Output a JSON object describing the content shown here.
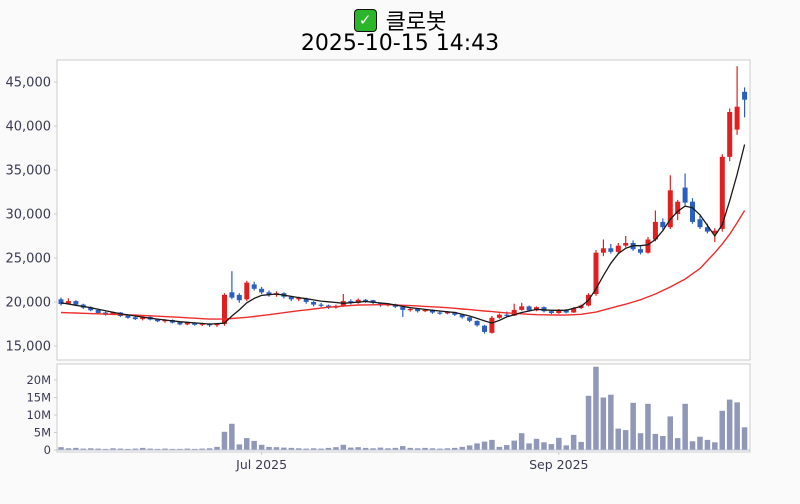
{
  "header": {
    "check_glyph": "✓",
    "title": "클로봇",
    "datetime": "2025-10-15 14:43"
  },
  "chart_data": {
    "type": "candlestick",
    "title": "클로봇",
    "subtitle": "2025-10-15 14:43",
    "legend_position": "none",
    "grid": false,
    "price_axis": {
      "range": [
        13400,
        47500
      ],
      "ticks": [
        {
          "label": "15,000",
          "value": 15000
        },
        {
          "label": "20,000",
          "value": 20000
        },
        {
          "label": "25,000",
          "value": 25000
        },
        {
          "label": "30,000",
          "value": 30000
        },
        {
          "label": "35,000",
          "value": 35000
        },
        {
          "label": "40,000",
          "value": 40000
        },
        {
          "label": "45,000",
          "value": 45000
        }
      ]
    },
    "volume_axis": {
      "unit": "millions",
      "range": [
        0,
        25.5
      ],
      "ticks": [
        {
          "label": "0",
          "value": 0
        },
        {
          "label": "5M",
          "value": 5
        },
        {
          "label": "10M",
          "value": 10
        },
        {
          "label": "15M",
          "value": 15
        },
        {
          "label": "20M",
          "value": 20
        }
      ]
    },
    "x_axis": {
      "ticks": [
        {
          "label": "Jul 2025",
          "index": 27
        },
        {
          "label": "Sep 2025",
          "index": 67
        }
      ]
    },
    "colors": {
      "up": "#e02020",
      "down": "#2a5fbe",
      "ma_fast": "#1a1a1a",
      "ma_slow": "#ee2d2d",
      "volume": "#9097b7",
      "axis_label": "#3b3b52",
      "spine": "#cccccc",
      "plot_bg": "#ffffff",
      "fig_bg": "#fafafa"
    },
    "series": {
      "candles_format": [
        "open",
        "high",
        "low",
        "close",
        "volume_millions"
      ],
      "candles": [
        [
          20300,
          20500,
          19600,
          19750,
          0.8
        ],
        [
          19800,
          20400,
          19700,
          20100,
          0.5
        ],
        [
          20100,
          20200,
          19600,
          19700,
          0.6
        ],
        [
          19700,
          19800,
          19200,
          19350,
          0.4
        ],
        [
          19400,
          19500,
          18950,
          19050,
          0.5
        ],
        [
          19100,
          19150,
          18650,
          18750,
          0.4
        ],
        [
          18800,
          18900,
          18450,
          18550,
          0.3
        ],
        [
          18550,
          18900,
          18500,
          18800,
          0.5
        ],
        [
          18800,
          18850,
          18300,
          18400,
          0.4
        ],
        [
          18450,
          18500,
          18100,
          18200,
          0.3
        ],
        [
          18250,
          18350,
          17950,
          18050,
          0.4
        ],
        [
          18050,
          18400,
          17900,
          18300,
          0.6
        ],
        [
          18300,
          18350,
          17900,
          18000,
          0.4
        ],
        [
          18000,
          18100,
          17700,
          17800,
          0.3
        ],
        [
          17800,
          18050,
          17650,
          17950,
          0.4
        ],
        [
          17950,
          18000,
          17550,
          17650,
          0.3
        ],
        [
          17700,
          17750,
          17350,
          17450,
          0.3
        ],
        [
          17450,
          17750,
          17350,
          17650,
          0.4
        ],
        [
          17650,
          17700,
          17300,
          17400,
          0.3
        ],
        [
          17400,
          17650,
          17250,
          17550,
          0.4
        ],
        [
          17550,
          17600,
          17150,
          17350,
          0.5
        ],
        [
          17350,
          17600,
          17150,
          17500,
          0.9
        ],
        [
          17500,
          21000,
          17300,
          20800,
          5.2
        ],
        [
          21100,
          23500,
          20300,
          20500,
          7.5
        ],
        [
          20800,
          21000,
          19900,
          20200,
          1.6
        ],
        [
          20300,
          22400,
          20100,
          22200,
          3.4
        ],
        [
          22000,
          22300,
          21300,
          21500,
          2.6
        ],
        [
          21500,
          21700,
          20900,
          21100,
          1.5
        ],
        [
          21100,
          21300,
          20600,
          20800,
          0.9
        ],
        [
          20800,
          21200,
          20600,
          21000,
          0.8
        ],
        [
          21000,
          21100,
          20400,
          20600,
          0.7
        ],
        [
          20600,
          20700,
          20100,
          20300,
          0.6
        ],
        [
          20300,
          20600,
          20100,
          20450,
          0.5
        ],
        [
          20400,
          20500,
          19800,
          20000,
          0.4
        ],
        [
          20000,
          20100,
          19500,
          19700,
          0.5
        ],
        [
          19700,
          19900,
          19400,
          19600,
          0.4
        ],
        [
          19600,
          19700,
          19200,
          19350,
          0.6
        ],
        [
          19350,
          19700,
          19250,
          19550,
          0.8
        ],
        [
          19550,
          20900,
          19450,
          20100,
          1.5
        ],
        [
          20100,
          20300,
          19700,
          19900,
          0.7
        ],
        [
          19900,
          20400,
          19800,
          20250,
          0.8
        ],
        [
          20250,
          20350,
          19900,
          20200,
          0.6
        ],
        [
          20200,
          20250,
          19750,
          19900,
          0.5
        ],
        [
          19900,
          19950,
          19450,
          19600,
          0.7
        ],
        [
          19600,
          19850,
          19500,
          19750,
          0.5
        ],
        [
          19750,
          19800,
          19300,
          19450,
          0.6
        ],
        [
          19450,
          19500,
          18300,
          19100,
          1.1
        ],
        [
          19100,
          19300,
          18900,
          19200,
          0.6
        ],
        [
          19200,
          19250,
          18800,
          18950,
          0.5
        ],
        [
          18950,
          19200,
          18850,
          19100,
          0.6
        ],
        [
          19100,
          19150,
          18650,
          18800,
          0.5
        ],
        [
          18800,
          18950,
          18550,
          18700,
          0.4
        ],
        [
          18700,
          18950,
          18600,
          18850,
          0.5
        ],
        [
          18850,
          18900,
          18400,
          18550,
          0.6
        ],
        [
          18550,
          18600,
          18100,
          18250,
          0.9
        ],
        [
          18250,
          18300,
          17700,
          17850,
          1.3
        ],
        [
          17850,
          17900,
          17200,
          17350,
          1.9
        ],
        [
          17300,
          17400,
          16400,
          16600,
          2.4
        ],
        [
          16500,
          18400,
          16400,
          18200,
          2.9
        ],
        [
          18200,
          18700,
          18100,
          18550,
          0.9
        ],
        [
          18550,
          18900,
          18300,
          18450,
          1.4
        ],
        [
          18450,
          19800,
          18400,
          19100,
          2.7
        ],
        [
          19100,
          19900,
          19000,
          19500,
          4.8
        ],
        [
          19500,
          19600,
          18900,
          19050,
          1.9
        ],
        [
          19050,
          19500,
          18950,
          19400,
          3.2
        ],
        [
          19400,
          19500,
          18800,
          18950,
          2.2
        ],
        [
          18950,
          19100,
          18600,
          18750,
          1.7
        ],
        [
          18750,
          19200,
          18650,
          19100,
          3.5
        ],
        [
          19100,
          19200,
          18700,
          18800,
          1.3
        ],
        [
          18800,
          19400,
          18750,
          19300,
          4.3
        ],
        [
          19300,
          19700,
          19200,
          19600,
          2.3
        ],
        [
          19600,
          21000,
          19500,
          20800,
          15.5
        ],
        [
          20900,
          25900,
          20700,
          25600,
          23.8
        ],
        [
          25600,
          27100,
          25200,
          26100,
          15.0
        ],
        [
          26100,
          26600,
          25500,
          25700,
          15.8
        ],
        [
          25700,
          26700,
          25500,
          26400,
          6.1
        ],
        [
          26400,
          27500,
          26200,
          26700,
          5.7
        ],
        [
          26700,
          27000,
          25800,
          26000,
          13.5
        ],
        [
          26000,
          26300,
          25400,
          25600,
          4.8
        ],
        [
          25600,
          27400,
          25500,
          27100,
          13.2
        ],
        [
          27100,
          30400,
          26900,
          29100,
          4.6
        ],
        [
          29100,
          29500,
          28200,
          28500,
          4.0
        ],
        [
          28500,
          34400,
          28300,
          32700,
          9.6
        ],
        [
          30000,
          31600,
          29300,
          31400,
          3.4
        ],
        [
          33000,
          34600,
          31000,
          31300,
          13.2
        ],
        [
          31400,
          31800,
          28900,
          29100,
          2.5
        ],
        [
          29400,
          29800,
          28300,
          28500,
          3.8
        ],
        [
          28500,
          28900,
          27800,
          28000,
          2.9
        ],
        [
          27800,
          28400,
          26800,
          28100,
          2.2
        ],
        [
          28300,
          36800,
          28000,
          36500,
          11.2
        ],
        [
          36500,
          42000,
          36000,
          41600,
          14.4
        ],
        [
          39600,
          46800,
          39000,
          42200,
          13.6
        ],
        [
          43900,
          44400,
          41000,
          43000,
          6.5
        ]
      ],
      "ma_fast_anchors": [
        [
          0,
          19900
        ],
        [
          4,
          19350
        ],
        [
          8,
          18650
        ],
        [
          12,
          18150
        ],
        [
          16,
          17750
        ],
        [
          20,
          17480
        ],
        [
          22,
          17600
        ],
        [
          23,
          18400
        ],
        [
          24,
          19100
        ],
        [
          25,
          19900
        ],
        [
          26,
          20400
        ],
        [
          27,
          20750
        ],
        [
          29,
          20900
        ],
        [
          32,
          20500
        ],
        [
          35,
          20100
        ],
        [
          38,
          19850
        ],
        [
          41,
          20050
        ],
        [
          44,
          19800
        ],
        [
          47,
          19350
        ],
        [
          50,
          19050
        ],
        [
          53,
          18800
        ],
        [
          55,
          18400
        ],
        [
          57,
          17850
        ],
        [
          58,
          17600
        ],
        [
          59,
          17900
        ],
        [
          60,
          18300
        ],
        [
          62,
          18800
        ],
        [
          64,
          19150
        ],
        [
          66,
          19050
        ],
        [
          68,
          19050
        ],
        [
          70,
          19500
        ],
        [
          71,
          20200
        ],
        [
          72,
          21500
        ],
        [
          73,
          23000
        ],
        [
          74,
          24400
        ],
        [
          75,
          25500
        ],
        [
          76,
          26100
        ],
        [
          77,
          26400
        ],
        [
          78,
          26400
        ],
        [
          79,
          26500
        ],
        [
          80,
          27100
        ],
        [
          81,
          28100
        ],
        [
          82,
          29400
        ],
        [
          83,
          30300
        ],
        [
          84,
          30900
        ],
        [
          85,
          30700
        ],
        [
          86,
          29900
        ],
        [
          87,
          28700
        ],
        [
          88,
          27500
        ],
        [
          89,
          28800
        ],
        [
          90,
          31500
        ],
        [
          91,
          34500
        ],
        [
          92,
          37900
        ]
      ],
      "ma_slow_anchors": [
        [
          0,
          18800
        ],
        [
          5,
          18650
        ],
        [
          10,
          18500
        ],
        [
          15,
          18300
        ],
        [
          20,
          18050
        ],
        [
          22,
          18050
        ],
        [
          25,
          18250
        ],
        [
          28,
          18550
        ],
        [
          32,
          19000
        ],
        [
          36,
          19400
        ],
        [
          40,
          19650
        ],
        [
          44,
          19700
        ],
        [
          48,
          19550
        ],
        [
          52,
          19350
        ],
        [
          56,
          19050
        ],
        [
          60,
          18750
        ],
        [
          64,
          18550
        ],
        [
          68,
          18500
        ],
        [
          70,
          18600
        ],
        [
          72,
          18850
        ],
        [
          74,
          19300
        ],
        [
          76,
          19750
        ],
        [
          78,
          20250
        ],
        [
          80,
          20900
        ],
        [
          82,
          21700
        ],
        [
          84,
          22600
        ],
        [
          86,
          23800
        ],
        [
          88,
          25600
        ],
        [
          89,
          26600
        ],
        [
          90,
          27700
        ],
        [
          91,
          29000
        ],
        [
          92,
          30400
        ]
      ]
    }
  }
}
